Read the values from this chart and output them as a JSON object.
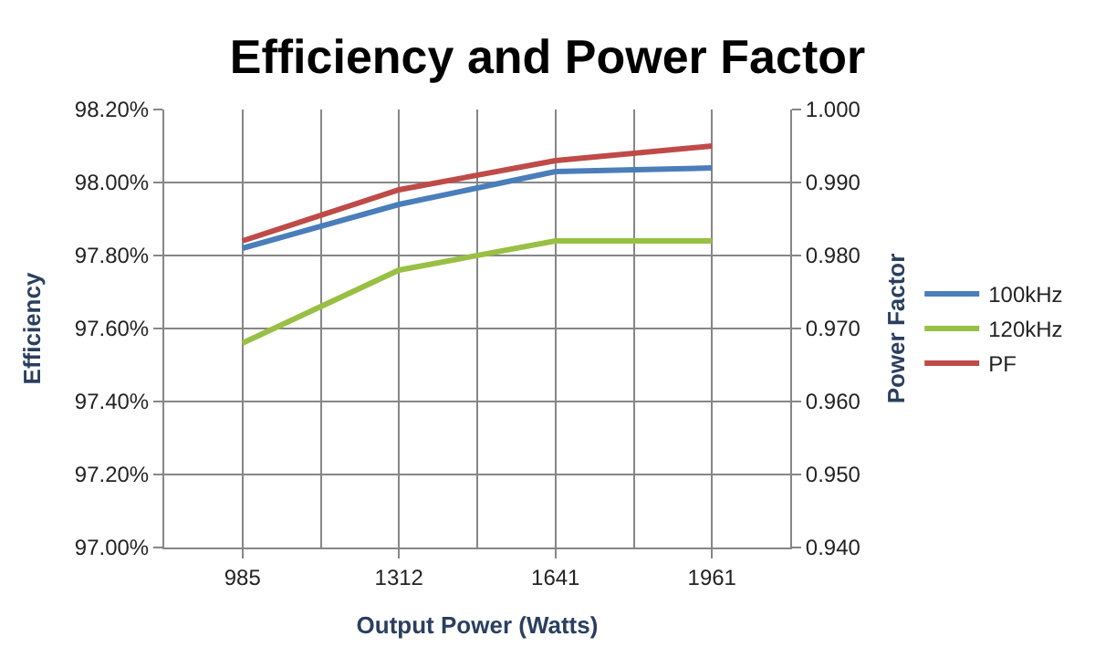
{
  "chart_data": {
    "type": "line",
    "title": "Efficiency and Power Factor",
    "xlabel": "Output Power (Watts)",
    "ylabel": "Efficiency",
    "y2label": "Power Factor",
    "categories": [
      "985",
      "1312",
      "1641",
      "1961"
    ],
    "series": [
      {
        "name": "100kHz",
        "color": "#4a7ebb",
        "values": [
          97.82,
          97.94,
          98.03,
          98.04
        ]
      },
      {
        "name": "120kHz",
        "color": "#98c044",
        "values": [
          97.56,
          97.76,
          97.84,
          97.84
        ]
      },
      {
        "name": "PF",
        "color": "#be4b48",
        "values": [
          0.982,
          0.989,
          0.993,
          0.995
        ],
        "axis": "y2"
      }
    ],
    "ylim": [
      97.0,
      98.2
    ],
    "yticks": [
      {
        "value": 97.0,
        "label": "97.00%"
      },
      {
        "value": 97.2,
        "label": "97.20%"
      },
      {
        "value": 97.4,
        "label": "97.40%"
      },
      {
        "value": 97.6,
        "label": "97.60%"
      },
      {
        "value": 97.8,
        "label": "97.80%"
      },
      {
        "value": 98.0,
        "label": "98.00%"
      },
      {
        "value": 98.2,
        "label": "98.20%"
      }
    ],
    "y2lim": [
      0.94,
      1.0
    ],
    "y2ticks": [
      {
        "value": 0.94,
        "label": "0.940"
      },
      {
        "value": 0.95,
        "label": "0.950"
      },
      {
        "value": 0.96,
        "label": "0.960"
      },
      {
        "value": 0.97,
        "label": "0.970"
      },
      {
        "value": 0.98,
        "label": "0.980"
      },
      {
        "value": 0.99,
        "label": "0.990"
      },
      {
        "value": 1.0,
        "label": "1.000"
      }
    ],
    "grid": true,
    "legend": "right",
    "marker": "none",
    "line_style": "solid"
  }
}
